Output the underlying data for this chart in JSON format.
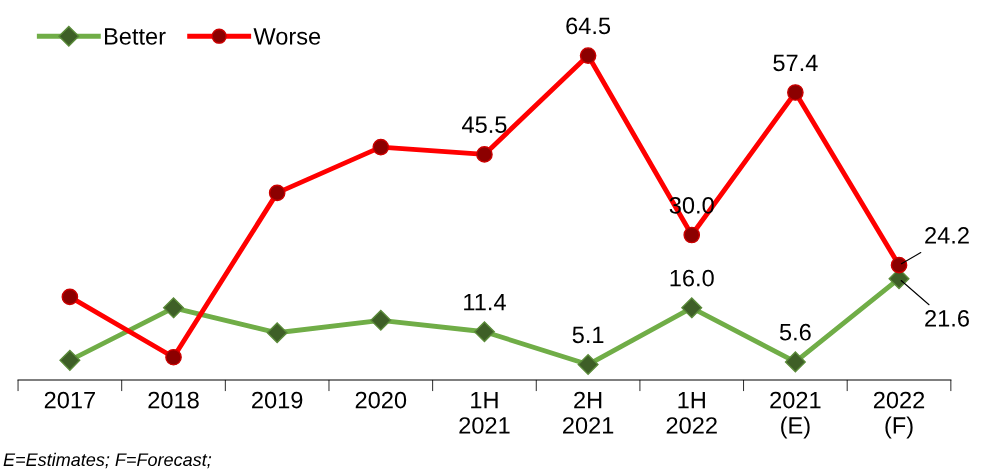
{
  "chart_data": {
    "type": "line",
    "categories": [
      "2017",
      "2018",
      "2019",
      "2020",
      "1H\n2021",
      "2H\n2021",
      "1H\n2022",
      "2021\n(E)",
      "2022\n(F)"
    ],
    "series": [
      {
        "name": "Better",
        "color": "#70ad47",
        "marker": "diamond",
        "values": [
          5.9,
          16.0,
          11.2,
          13.6,
          11.4,
          5.1,
          16.0,
          5.6,
          21.6
        ],
        "value_labels": [
          null,
          null,
          null,
          null,
          "11.4",
          "5.1",
          "16.0",
          "5.6",
          "21.6"
        ]
      },
      {
        "name": "Worse",
        "color": "#ff0000",
        "marker": "circle",
        "values": [
          18.1,
          6.5,
          38.1,
          46.9,
          45.5,
          64.5,
          30.0,
          57.4,
          24.2
        ],
        "value_labels": [
          null,
          null,
          null,
          null,
          "45.5",
          "64.5",
          "30.0",
          "57.4",
          "24.2"
        ]
      }
    ],
    "tick_labels": "x",
    "grid": false,
    "legend": "top left",
    "line_style": "solid",
    "annotations": [
      "E=Estimates; F=Forecast;"
    ]
  }
}
